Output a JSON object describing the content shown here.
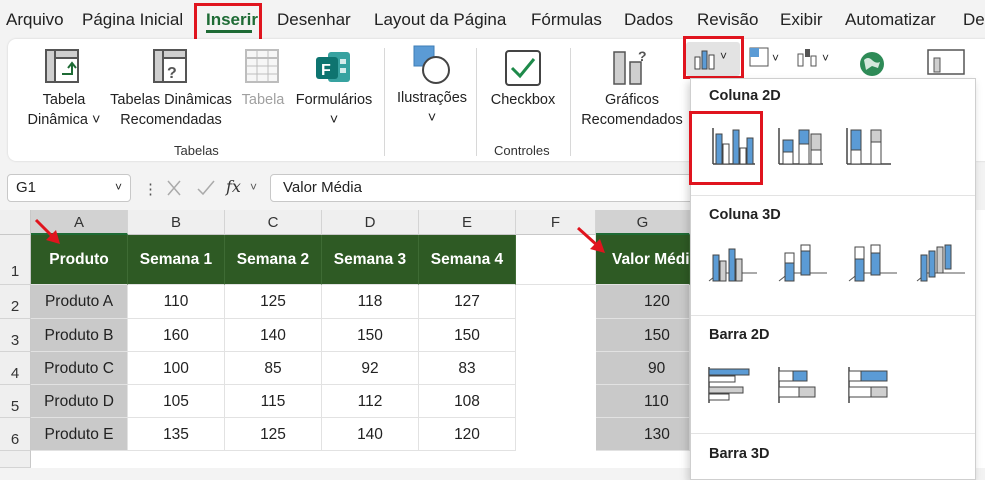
{
  "menu": {
    "items": [
      "Arquivo",
      "Página Inicial",
      "Inserir",
      "Desenhar",
      "Layout da Página",
      "Fórmulas",
      "Dados",
      "Revisão",
      "Exibir",
      "Automatizar",
      "De"
    ],
    "active": "Inserir"
  },
  "ribbon": {
    "tabela_dinamica": [
      "Tabela",
      "Dinâmica ˅"
    ],
    "tabelas_dinamicas_recomendadas": [
      "Tabelas Dinâmicas",
      "Recomendadas"
    ],
    "tabela": "Tabela",
    "formularios": "Formulários",
    "formularios_caret": "˅",
    "ilustracoes": "Ilustrações",
    "ilustracoes_caret": "˅",
    "checkbox": "Checkbox",
    "graficos_recomendados": [
      "Gráficos",
      "Recomendados"
    ],
    "group_tabelas": "Tabelas",
    "group_controles": "Controles",
    "caret": "˅"
  },
  "formula_bar": {
    "name_box": "G1",
    "fx": "fx",
    "content": "Valor Média"
  },
  "sheet": {
    "columns": [
      "A",
      "B",
      "C",
      "D",
      "E",
      "F",
      "G"
    ],
    "rows": [
      "1",
      "2",
      "3",
      "4",
      "5",
      "6"
    ],
    "header": [
      "Produto",
      "Semana 1",
      "Semana 2",
      "Semana 3",
      "Semana 4"
    ],
    "data": [
      [
        "Produto A",
        "110",
        "125",
        "118",
        "127"
      ],
      [
        "Produto B",
        "160",
        "140",
        "150",
        "150"
      ],
      [
        "Produto C",
        "100",
        "85",
        "92",
        "83"
      ],
      [
        "Produto D",
        "105",
        "115",
        "112",
        "108"
      ],
      [
        "Produto E",
        "135",
        "125",
        "140",
        "120"
      ]
    ],
    "g_header": "Valor Médi",
    "g_values": [
      "120",
      "150",
      "90",
      "110",
      "130"
    ]
  },
  "chart_dropdown": {
    "sections": [
      "Coluna 2D",
      "Coluna 3D",
      "Barra 2D",
      "Barra 3D"
    ]
  },
  "colors": {
    "accent_green": "#1e6b35",
    "header_fill": "#2e5a24",
    "highlight_red": "#e0141e",
    "chart_blue": "#5b9bd5"
  }
}
